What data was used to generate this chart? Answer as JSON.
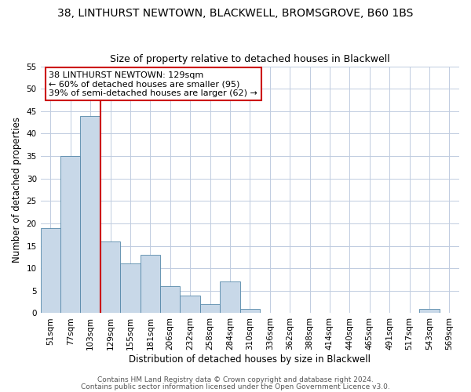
{
  "title": "38, LINTHURST NEWTOWN, BLACKWELL, BROMSGROVE, B60 1BS",
  "subtitle": "Size of property relative to detached houses in Blackwell",
  "xlabel": "Distribution of detached houses by size in Blackwell",
  "ylabel": "Number of detached properties",
  "bin_labels": [
    "51sqm",
    "77sqm",
    "103sqm",
    "129sqm",
    "155sqm",
    "181sqm",
    "206sqm",
    "232sqm",
    "258sqm",
    "284sqm",
    "310sqm",
    "336sqm",
    "362sqm",
    "388sqm",
    "414sqm",
    "440sqm",
    "465sqm",
    "491sqm",
    "517sqm",
    "543sqm",
    "569sqm"
  ],
  "bar_values": [
    19,
    35,
    44,
    16,
    11,
    13,
    6,
    4,
    2,
    7,
    1,
    0,
    0,
    0,
    0,
    0,
    0,
    0,
    0,
    1,
    0
  ],
  "bar_color": "#c8d8e8",
  "bar_edge_color": "#5588aa",
  "vline_index": 3,
  "vline_color": "#cc0000",
  "ylim": [
    0,
    55
  ],
  "yticks": [
    0,
    5,
    10,
    15,
    20,
    25,
    30,
    35,
    40,
    45,
    50,
    55
  ],
  "annotation_text": "38 LINTHURST NEWTOWN: 129sqm\n← 60% of detached houses are smaller (95)\n39% of semi-detached houses are larger (62) →",
  "annotation_box_color": "#ffffff",
  "annotation_box_edge_color": "#cc0000",
  "footer_line1": "Contains HM Land Registry data © Crown copyright and database right 2024.",
  "footer_line2": "Contains public sector information licensed under the Open Government Licence v3.0.",
  "background_color": "#ffffff",
  "grid_color": "#c0cce0",
  "title_fontsize": 10,
  "subtitle_fontsize": 9,
  "axis_label_fontsize": 8.5,
  "tick_fontsize": 7.5,
  "annotation_fontsize": 8,
  "footer_fontsize": 6.5
}
